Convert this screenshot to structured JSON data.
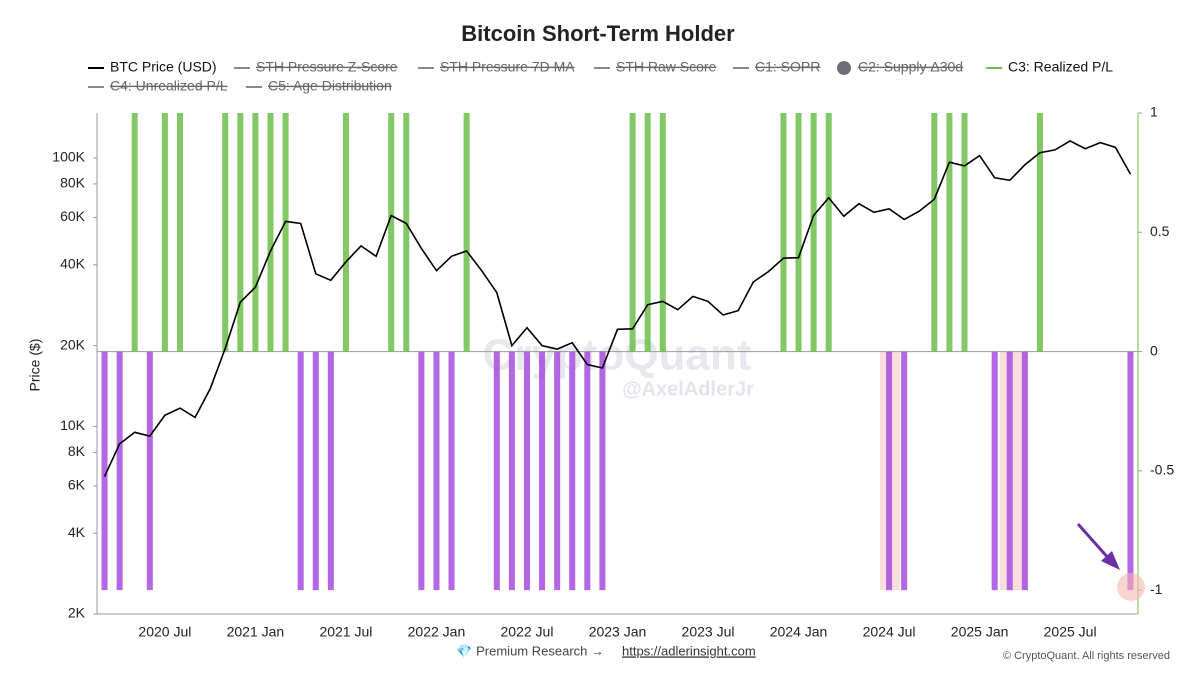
{
  "chart_data": {
    "type": "combo",
    "title": "Bitcoin Short-Term Holder",
    "ylabel": "Price ($)",
    "log_y": true,
    "grid": false,
    "categories": [
      null,
      null,
      null,
      null,
      "2020 Jul",
      null,
      null,
      null,
      null,
      null,
      "2021 Jan",
      null,
      null,
      null,
      null,
      null,
      "2021 Jul",
      null,
      null,
      null,
      null,
      null,
      "2022 Jan",
      null,
      null,
      null,
      null,
      null,
      "2022 Jul",
      null,
      null,
      null,
      null,
      null,
      "2023 Jan",
      null,
      null,
      null,
      null,
      null,
      "2023 Jul",
      null,
      null,
      null,
      null,
      null,
      "2024 Jan",
      null,
      null,
      null,
      null,
      null,
      "2024 Jul",
      null,
      null,
      null,
      null,
      null,
      "2025 Jan",
      null,
      null,
      null,
      null,
      null,
      "2025 Jul",
      null,
      null,
      null,
      null
    ],
    "ylim": [
      2000,
      147000
    ],
    "yticks": [
      {
        "value": 2000,
        "label": "2K"
      },
      {
        "value": 4000,
        "label": "4K"
      },
      {
        "value": 6000,
        "label": "6K"
      },
      {
        "value": 8000,
        "label": "8K"
      },
      {
        "value": 10000,
        "label": "10K"
      },
      {
        "value": 20000,
        "label": "20K"
      },
      {
        "value": 40000,
        "label": "40K"
      },
      {
        "value": 60000,
        "label": "60K"
      },
      {
        "value": 80000,
        "label": "80K"
      },
      {
        "value": 100000,
        "label": "100K"
      }
    ],
    "y2lim": [
      -1.1,
      1
    ],
    "y2ticks": [
      1,
      0.5,
      0,
      -0.5,
      -1
    ],
    "series": [
      {
        "name": "BTC Price (USD)",
        "type": "line",
        "color": "#000000",
        "axis": "y",
        "values": [
          6500,
          8600,
          9500,
          9200,
          11000,
          11700,
          10800,
          13800,
          19500,
          29000,
          33000,
          45000,
          58000,
          57000,
          37000,
          35000,
          41000,
          47000,
          43000,
          61000,
          57000,
          46000,
          38000,
          43000,
          45000,
          38000,
          31500,
          20000,
          23300,
          20000,
          19400,
          20500,
          17000,
          16500,
          23000,
          23100,
          28400,
          29200,
          27200,
          30500,
          29200,
          26000,
          27000,
          34500,
          37700,
          42300,
          42500,
          61000,
          71000,
          60600,
          67500,
          62700,
          64600,
          59000,
          63300,
          70200,
          96400,
          93400,
          102000,
          84300,
          82500,
          94200,
          104600,
          107100,
          115700,
          108200,
          114000,
          109500,
          87000
        ]
      },
      {
        "name": "STH Pressure Z-Score",
        "color": "#888888",
        "hidden": true
      },
      {
        "name": "STH Pressure 7D MA",
        "color": "#888888",
        "hidden": true
      },
      {
        "name": "STH Raw Score",
        "color": "#888888",
        "hidden": true
      },
      {
        "name": "C1: SOPR",
        "color": "#888888",
        "hidden": true
      },
      {
        "name": "C2: Supply Δ30d",
        "color": "#6e6e78",
        "hidden": true,
        "marker": "dot"
      },
      {
        "name": "C3: Realized P/L",
        "type": "bar",
        "color": "#6cc04a",
        "negative_color": "#a64ce0",
        "axis": "y2",
        "values": [
          -1,
          -1,
          1,
          -1,
          1,
          1,
          0,
          0,
          1,
          1,
          1,
          1,
          1,
          -1,
          -1,
          -1,
          1,
          0,
          0,
          1,
          1,
          -1,
          -1,
          -1,
          1,
          0,
          -1,
          -1,
          -1,
          -1,
          -1,
          -1,
          -1,
          -1,
          0,
          1,
          1,
          1,
          0,
          0,
          0,
          0,
          0,
          0,
          0,
          1,
          1,
          1,
          1,
          0,
          0,
          0,
          -1,
          -1,
          0,
          1,
          1,
          1,
          0,
          -1,
          -1,
          -1,
          1,
          0,
          0,
          0,
          0,
          0,
          -1
        ]
      },
      {
        "name": "C4: Unrealized P/L",
        "color": "#888888",
        "hidden": true
      },
      {
        "name": "C5: Age Distribution",
        "color": "#888888",
        "hidden": true
      }
    ],
    "watermark": [
      "CryptoQuant",
      "@AxelAdlerJr"
    ],
    "footer": {
      "prefix": "💎 Premium Research →",
      "link": "https://adlerinsight.com",
      "copyright": "© CryptoQuant. All rights reserved"
    }
  }
}
